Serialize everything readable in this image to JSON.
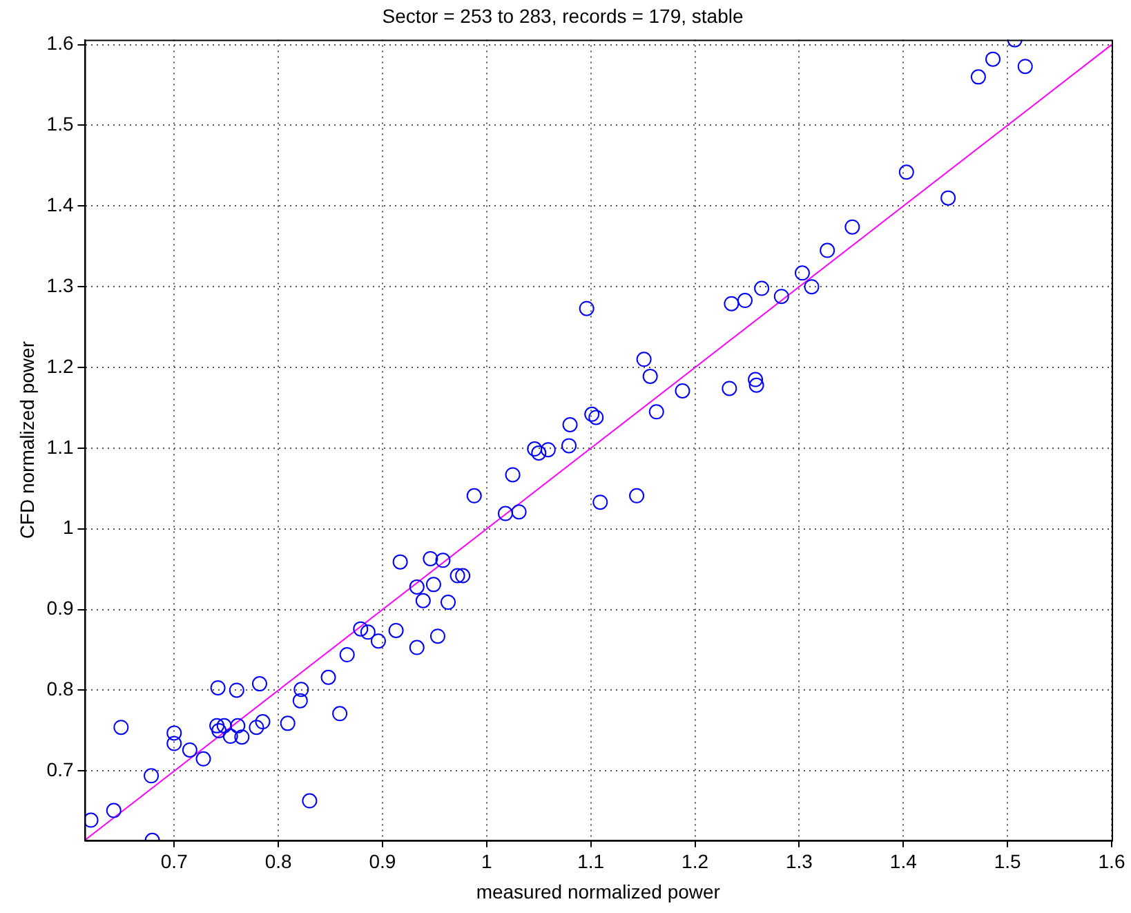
{
  "chart_data": {
    "type": "scatter",
    "title": "Sector = 253 to 283, records = 179, stable",
    "xlabel": "measured normalized power",
    "ylabel": "CFD normalized power",
    "xlim": [
      0.614,
      1.6
    ],
    "ylim": [
      0.614,
      1.606
    ],
    "xticks": [
      0.7,
      0.8,
      0.9,
      1,
      1.1,
      1.2,
      1.3,
      1.4,
      1.5,
      1.6
    ],
    "yticks": [
      0.7,
      0.8,
      0.9,
      1,
      1.1,
      1.2,
      1.3,
      1.4,
      1.5,
      1.6
    ],
    "grid": true,
    "legend": false,
    "series": [
      {
        "color": "#0000ff",
        "marker": "circle",
        "x": [
          0.62,
          0.642,
          0.649,
          0.678,
          0.679,
          0.7,
          0.7,
          0.715,
          0.728,
          0.742,
          0.741,
          0.743,
          0.748,
          0.754,
          0.76,
          0.761,
          0.765,
          0.779,
          0.782,
          0.785,
          0.809,
          0.821,
          0.822,
          0.83,
          0.848,
          0.859,
          0.866,
          0.879,
          0.886,
          0.896,
          0.913,
          0.917,
          0.933,
          0.939,
          0.933,
          0.946,
          0.949,
          0.953,
          0.958,
          0.963,
          0.972,
          0.977,
          0.988,
          1.018,
          1.031,
          1.025,
          1.046,
          1.05,
          1.059,
          1.079,
          1.08,
          1.101,
          1.105,
          1.096,
          1.109,
          1.144,
          1.151,
          1.157,
          1.163,
          1.188,
          1.233,
          1.258,
          1.259,
          1.235,
          1.248,
          1.264,
          1.283,
          1.303,
          1.312,
          1.327,
          1.351,
          1.403,
          1.443,
          1.472,
          1.486,
          1.507,
          1.517
        ],
        "values": [
          0.639,
          0.651,
          0.754,
          0.694,
          0.614,
          0.747,
          0.734,
          0.726,
          0.715,
          0.803,
          0.756,
          0.75,
          0.756,
          0.743,
          0.8,
          0.756,
          0.742,
          0.754,
          0.808,
          0.761,
          0.759,
          0.787,
          0.801,
          0.663,
          0.816,
          0.771,
          0.844,
          0.876,
          0.872,
          0.861,
          0.874,
          0.959,
          0.928,
          0.911,
          0.853,
          0.963,
          0.931,
          0.867,
          0.961,
          0.909,
          0.942,
          0.942,
          1.041,
          1.019,
          1.021,
          1.067,
          1.099,
          1.094,
          1.098,
          1.103,
          1.129,
          1.142,
          1.138,
          1.273,
          1.033,
          1.041,
          1.21,
          1.189,
          1.145,
          1.171,
          1.174,
          1.185,
          1.178,
          1.279,
          1.283,
          1.298,
          1.288,
          1.317,
          1.3,
          1.345,
          1.374,
          1.442,
          1.41,
          1.56,
          1.582,
          1.606,
          1.573
        ]
      },
      {
        "type": "line",
        "color": "#ff00ff",
        "marker": "none",
        "x": [
          0.614,
          1.6
        ],
        "values": [
          0.614,
          1.6
        ]
      }
    ]
  }
}
